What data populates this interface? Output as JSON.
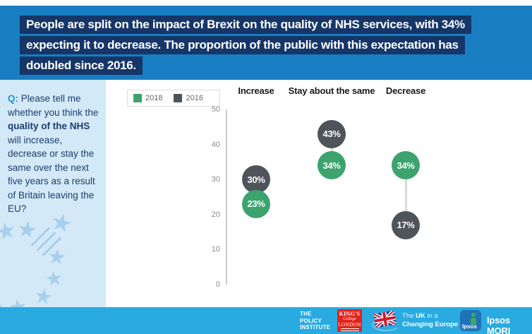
{
  "banner": {
    "line1": "People are split on the impact of Brexit on the quality of NHS services, with 34%",
    "line2": "expecting it to decrease. The proportion of the public with this expectation has",
    "line3": "doubled since 2016."
  },
  "sidebar": {
    "question": {
      "q_label": "Q:",
      "text_before_bold": " Please tell me whether you think the ",
      "bold_text": "quality of the NHS",
      "text_after_bold": " will increase, decrease or stay the same over the next five years as a result of Britain leaving the EU?"
    }
  },
  "chart_data": {
    "type": "scatter",
    "subtype": "dot-plot",
    "title": "",
    "categories": [
      "Increase",
      "Stay about the same",
      "Decrease"
    ],
    "series": [
      {
        "name": "2018",
        "color": "#3da36e",
        "values": [
          23,
          34,
          34
        ]
      },
      {
        "name": "2016",
        "color": "#4e545a",
        "values": [
          30,
          43,
          17
        ]
      }
    ],
    "unit": "%",
    "ylim": [
      0,
      50
    ],
    "yticks": [
      0,
      10,
      20,
      30,
      40,
      50
    ],
    "legend_position": "top-left",
    "grid": false
  },
  "footer": {
    "policy_institute": {
      "line1": "THE",
      "line2": "POLICY",
      "line3": "INSTITUTE"
    },
    "kings": {
      "line1": "KING'S",
      "line2": "College",
      "line3": "LONDON"
    },
    "ukice": {
      "the": "The ",
      "uk": "UK",
      "in_a": " in a",
      "line2": "Changing Europe"
    },
    "ipsos_logo": "Ipsos",
    "ipsos_mori": "Ipsos MORI"
  },
  "colors": {
    "banner_blue": "#197dc2",
    "banner_highlight_navy": "#163668",
    "sidebar_light_blue": "#d3e9f7",
    "sidebar_text_navy": "#1d3c6e",
    "q_label_blue": "#1f95d8",
    "stars_blue": "#a8cfeb",
    "footer_blue": "#29aae1",
    "series_2018_green": "#3da36e",
    "series_2016_gray": "#4e545a",
    "kings_red": "#e2231a"
  }
}
